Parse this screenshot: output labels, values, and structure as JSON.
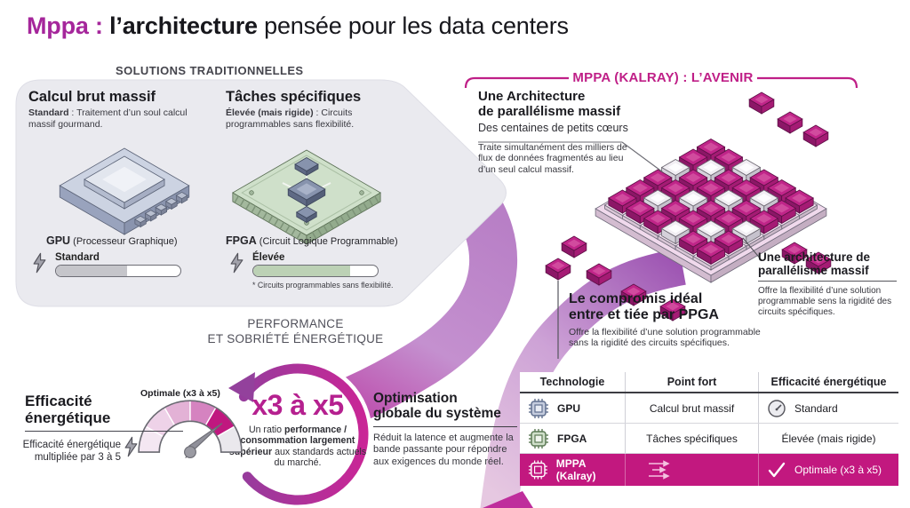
{
  "title": {
    "brand": "Mppa : ",
    "bold": "l’architecture",
    "rest": " pensée pour les data centers"
  },
  "traditional": {
    "header": "SOLUTIONS TRADITIONNELLES",
    "gpu": {
      "heading": "Calcul brut massif",
      "desc_bold": "Standard",
      "desc_rest": " : Traitement d’un soul calcul massif gourmand.",
      "chip_bold": "GPU",
      "chip_rest": " (Processeur Graphique)",
      "meter_label": "Standard",
      "meter_pct": 57
    },
    "fpga": {
      "heading": "Tâches spécifiques",
      "desc_bold": "Élevée (mais rigide)",
      "desc_rest": " : Circuits programmables sans flexibilité.",
      "chip_bold": "FPGA",
      "chip_rest": " (Circuit Logique Programmable)",
      "meter_label": "Élevée",
      "meter_pct": 78,
      "footnote": "* Circuits programmables sans flexibilité."
    }
  },
  "mppa": {
    "header": "MPPA (KALRAY) : L’AVENIR",
    "arch_block": {
      "heading_line1": "Une Architecture",
      "heading_line2": "de parallélisme massif",
      "subheading": "Des centaines de petits cœurs",
      "body": "Traite simultanément des milliers de flux de données fragmentés au lieu d’un seul calcul massif."
    },
    "right_block": {
      "heading_line1": "Une architecture de",
      "heading_line2": "parallélisme massif",
      "body": "Offre la flexibilité d’une solution programmable sens la rigidité des circuits spécifiques."
    },
    "compromis_block": {
      "heading_line1": "Le compromis idéal",
      "heading_line2": "entre et tiée par PPGA",
      "body": "Offre la flexibilité d’une solution programmable sans la rigidité des circuits spécifiques."
    }
  },
  "performance": {
    "line1": "PERFORMANCE",
    "line2": "ET SOBRIÉTÉ ÉNERGÉTIQUE"
  },
  "efficiency": {
    "heading_line1": "Efficacité",
    "heading_line2": "énergétique",
    "body_line1": "Efficacité énergétique",
    "body_line2": "multipliée par 3 à 5",
    "gauge_label": "Optimale (x3 à x5)",
    "segments": [
      "#f4e7f2",
      "#eed2e8",
      "#e3b2d6",
      "#d583c0",
      "#c0187f",
      "#eae8ed"
    ]
  },
  "ratio": {
    "value": "x3 à x5",
    "body_pre": "Un ratio ",
    "body_bold": "performance / consommation largement supérieur",
    "body_post": " aux standards actuels du marché."
  },
  "optimisation": {
    "heading_line1": "Optimisation",
    "heading_line2": "globale du système",
    "body": "Réduit la latence et augmente la bande passante pour répondre aux exigences du monde réel."
  },
  "table": {
    "headers": [
      "Technologie",
      "Point fort",
      "Efficacité énergétique"
    ],
    "rows": [
      {
        "tech": "GPU",
        "point": "Calcul brut massif",
        "eff": "Standard"
      },
      {
        "tech": "FPGA",
        "point": "Tâches spécifiques",
        "eff": "Élevée (mais rigide)"
      },
      {
        "tech": "MPPA (Kalray)",
        "point": "",
        "eff": "Optimale (x3 à x5)"
      }
    ]
  },
  "chip_board": {
    "grid_size": 6,
    "pattern": [
      "mmwmmm",
      "mwmmwm",
      "wmmwmm",
      "mmwmmw",
      "mwmmwm",
      "mmmwmm"
    ],
    "core_color": "#c02589",
    "alt_color": "#f1eef3"
  },
  "colors": {
    "brand_magenta": "#a5269b",
    "accent_magenta": "#c2187f",
    "panel_gray": "#eaeaef"
  }
}
